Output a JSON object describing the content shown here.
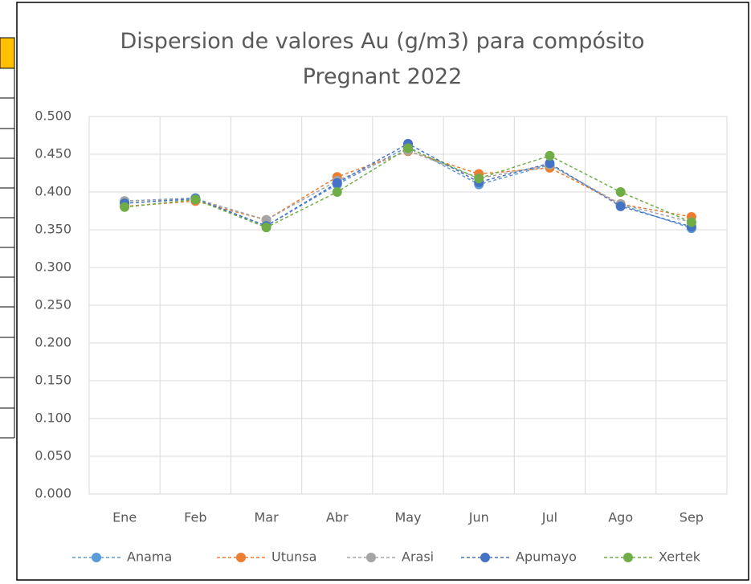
{
  "chart_data": {
    "type": "line",
    "title": "Dispersion de valores Au (g/m3) para compósito Pregnant 2022",
    "categories": [
      "Ene",
      "Feb",
      "Mar",
      "Abr",
      "May",
      "Jun",
      "Jul",
      "Ago",
      "Sep"
    ],
    "series": [
      {
        "name": "Anama",
        "color": "#5b9bd5",
        "values": [
          0.388,
          0.392,
          0.355,
          0.41,
          0.46,
          0.41,
          0.436,
          0.383,
          0.352
        ]
      },
      {
        "name": "Utunsa",
        "color": "#ed7d31",
        "values": [
          0.381,
          0.388,
          0.363,
          0.42,
          0.454,
          0.424,
          0.432,
          0.384,
          0.367
        ]
      },
      {
        "name": "Arasi",
        "color": "#a5a5a5",
        "values": [
          0.388,
          0.391,
          0.363,
          0.415,
          0.455,
          0.418,
          0.436,
          0.384,
          0.36
        ]
      },
      {
        "name": "Apumayo",
        "color": "#4472c4",
        "values": [
          0.385,
          0.391,
          0.355,
          0.412,
          0.464,
          0.413,
          0.438,
          0.381,
          0.354
        ]
      },
      {
        "name": "Xertek",
        "color": "#70ad47",
        "values": [
          0.38,
          0.39,
          0.353,
          0.4,
          0.458,
          0.418,
          0.448,
          0.4,
          0.36
        ]
      }
    ],
    "ylim": [
      0,
      0.5
    ],
    "yticks": [
      {
        "value": 0,
        "label": "0.000"
      },
      {
        "value": 0.05,
        "label": "0.050"
      },
      {
        "value": 0.1,
        "label": "0.100"
      },
      {
        "value": 0.15,
        "label": "0.150"
      },
      {
        "value": 0.2,
        "label": "0.200"
      },
      {
        "value": 0.25,
        "label": "0.250"
      },
      {
        "value": 0.3,
        "label": "0.300"
      },
      {
        "value": 0.35,
        "label": "0.350"
      },
      {
        "value": 0.4,
        "label": "0.400"
      },
      {
        "value": 0.45,
        "label": "0.450"
      },
      {
        "value": 0.5,
        "label": "0.500"
      }
    ],
    "grid": true,
    "legend": "bottom"
  }
}
